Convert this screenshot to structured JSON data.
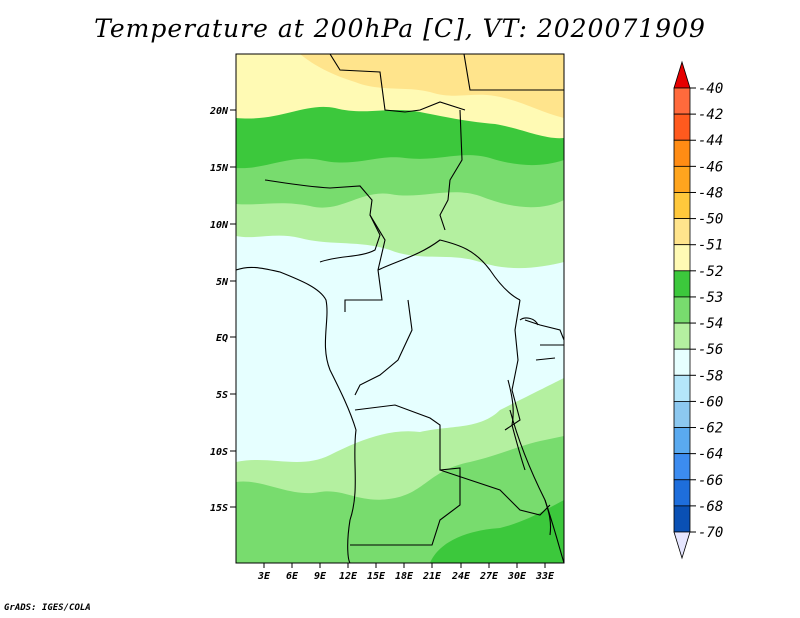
{
  "title": "Temperature at 200hPa [C], VT: 2020071909",
  "credit": "GrADS: IGES/COLA",
  "map": {
    "lat_labels": [
      "20N",
      "15N",
      "10N",
      "5N",
      "EQ",
      "5S",
      "10S",
      "15S"
    ],
    "lon_labels": [
      "3E",
      "6E",
      "9E",
      "12E",
      "15E",
      "18E",
      "21E",
      "24E",
      "27E",
      "30E",
      "33E"
    ]
  },
  "colorbar": {
    "levels": [
      {
        "label": "-40",
        "color": "#ff6a3c"
      },
      {
        "label": "-42",
        "color": "#ff5a1e"
      },
      {
        "label": "-44",
        "color": "#ff8c14"
      },
      {
        "label": "-46",
        "color": "#ffa51e"
      },
      {
        "label": "-48",
        "color": "#ffc83c"
      },
      {
        "label": "-50",
        "color": "#ffe48c"
      },
      {
        "label": "-51",
        "color": "#fffab4"
      },
      {
        "label": "-52",
        "color": "#3cc83c"
      },
      {
        "label": "-53",
        "color": "#78dc6e"
      },
      {
        "label": "-54",
        "color": "#b4f0a0"
      },
      {
        "label": "-56",
        "color": "#e6ffff"
      },
      {
        "label": "-58",
        "color": "#b4e6fa"
      },
      {
        "label": "-60",
        "color": "#8cc8f0"
      },
      {
        "label": "-62",
        "color": "#5aaaf0"
      },
      {
        "label": "-64",
        "color": "#3c8cf0"
      },
      {
        "label": "-66",
        "color": "#1e6edc"
      },
      {
        "label": "-68",
        "color": "#0a50b4"
      },
      {
        "label": "-70",
        "color": "#0a2896"
      }
    ],
    "low_end_color": "#e6e6ff",
    "high_end_color": "#e60000"
  }
}
